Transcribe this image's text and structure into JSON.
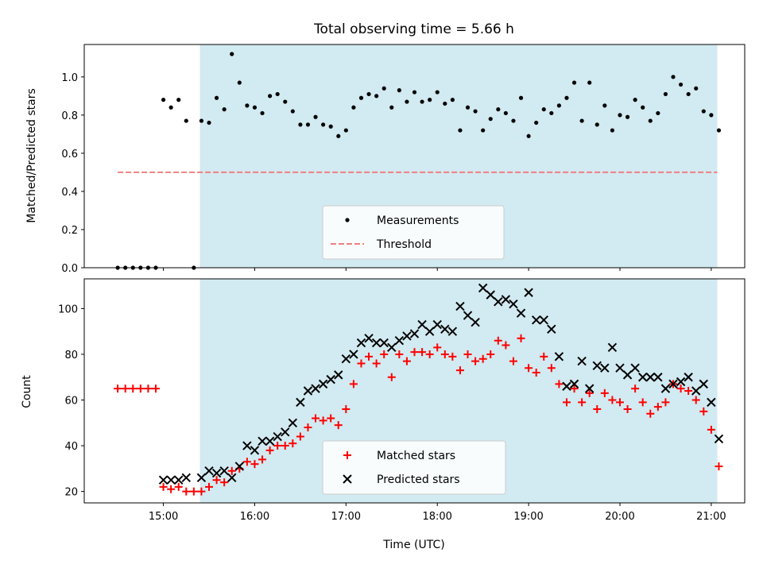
{
  "title": "Total observing time = 5.66 h",
  "xlabel": "Time (UTC)",
  "x_ticks": [
    "15:00",
    "16:00",
    "17:00",
    "18:00",
    "19:00",
    "20:00",
    "21:00"
  ],
  "colors": {
    "shade": "#add8e6",
    "threshold": "#f08080",
    "matched": "#ff0000",
    "predicted": "#000000",
    "measurement": "#000000"
  },
  "chart_data": [
    {
      "type": "scatter",
      "ylabel": "Matched/Predicted stars",
      "xlim": [
        "14:08",
        "21:22"
      ],
      "ylim": [
        0,
        1.17
      ],
      "y_ticks": [
        0.0,
        0.2,
        0.4,
        0.6,
        0.8,
        1.0
      ],
      "shaded_interval": [
        "15:24",
        "21:04"
      ],
      "threshold": {
        "name": "Threshold",
        "value": 0.5,
        "x_range": [
          "14:30",
          "21:04"
        ]
      },
      "legend_position": "lower-center",
      "series": [
        {
          "name": "Measurements",
          "points": [
            [
              "14:30",
              0.0
            ],
            [
              "14:35",
              0.0
            ],
            [
              "14:40",
              0.0
            ],
            [
              "14:45",
              0.0
            ],
            [
              "14:50",
              0.0
            ],
            [
              "14:55",
              0.0
            ],
            [
              "15:00",
              0.88
            ],
            [
              "15:05",
              0.84
            ],
            [
              "15:10",
              0.88
            ],
            [
              "15:15",
              0.77
            ],
            [
              "15:20",
              0.0
            ],
            [
              "15:25",
              0.77
            ],
            [
              "15:30",
              0.76
            ],
            [
              "15:35",
              0.89
            ],
            [
              "15:40",
              0.83
            ],
            [
              "15:45",
              1.12
            ],
            [
              "15:50",
              0.97
            ],
            [
              "15:55",
              0.85
            ],
            [
              "16:00",
              0.84
            ],
            [
              "16:05",
              0.81
            ],
            [
              "16:10",
              0.9
            ],
            [
              "16:15",
              0.91
            ],
            [
              "16:20",
              0.87
            ],
            [
              "16:25",
              0.82
            ],
            [
              "16:30",
              0.75
            ],
            [
              "16:35",
              0.75
            ],
            [
              "16:40",
              0.79
            ],
            [
              "16:45",
              0.75
            ],
            [
              "16:50",
              0.74
            ],
            [
              "16:55",
              0.69
            ],
            [
              "17:00",
              0.72
            ],
            [
              "17:05",
              0.84
            ],
            [
              "17:10",
              0.89
            ],
            [
              "17:15",
              0.91
            ],
            [
              "17:20",
              0.9
            ],
            [
              "17:25",
              0.94
            ],
            [
              "17:30",
              0.84
            ],
            [
              "17:35",
              0.93
            ],
            [
              "17:40",
              0.87
            ],
            [
              "17:45",
              0.92
            ],
            [
              "17:50",
              0.87
            ],
            [
              "17:55",
              0.88
            ],
            [
              "18:00",
              0.92
            ],
            [
              "18:05",
              0.86
            ],
            [
              "18:10",
              0.88
            ],
            [
              "18:15",
              0.72
            ],
            [
              "18:20",
              0.84
            ],
            [
              "18:25",
              0.82
            ],
            [
              "18:30",
              0.72
            ],
            [
              "18:35",
              0.78
            ],
            [
              "18:40",
              0.83
            ],
            [
              "18:45",
              0.81
            ],
            [
              "18:50",
              0.77
            ],
            [
              "18:55",
              0.89
            ],
            [
              "19:00",
              0.69
            ],
            [
              "19:05",
              0.76
            ],
            [
              "19:10",
              0.83
            ],
            [
              "19:15",
              0.81
            ],
            [
              "19:20",
              0.85
            ],
            [
              "19:25",
              0.89
            ],
            [
              "19:30",
              0.97
            ],
            [
              "19:35",
              0.77
            ],
            [
              "19:40",
              0.97
            ],
            [
              "19:45",
              0.75
            ],
            [
              "19:50",
              0.85
            ],
            [
              "19:55",
              0.72
            ],
            [
              "20:00",
              0.8
            ],
            [
              "20:05",
              0.79
            ],
            [
              "20:10",
              0.88
            ],
            [
              "20:15",
              0.84
            ],
            [
              "20:20",
              0.77
            ],
            [
              "20:25",
              0.81
            ],
            [
              "20:30",
              0.91
            ],
            [
              "20:35",
              1.0
            ],
            [
              "20:40",
              0.96
            ],
            [
              "20:45",
              0.91
            ],
            [
              "20:50",
              0.94
            ],
            [
              "20:55",
              0.82
            ],
            [
              "21:00",
              0.8
            ],
            [
              "21:05",
              0.72
            ]
          ]
        }
      ]
    },
    {
      "type": "scatter",
      "ylabel": "Count",
      "xlim": [
        "14:08",
        "21:22"
      ],
      "ylim": [
        15,
        113
      ],
      "y_ticks": [
        20,
        40,
        60,
        80,
        100
      ],
      "shaded_interval": [
        "15:24",
        "21:04"
      ],
      "legend_position": "lower-center",
      "series": [
        {
          "name": "Matched stars",
          "marker": "plus",
          "points": [
            [
              "14:30",
              65
            ],
            [
              "14:35",
              65
            ],
            [
              "14:40",
              65
            ],
            [
              "14:45",
              65
            ],
            [
              "14:50",
              65
            ],
            [
              "14:55",
              65
            ],
            [
              "15:00",
              22
            ],
            [
              "15:05",
              21
            ],
            [
              "15:10",
              22
            ],
            [
              "15:15",
              20
            ],
            [
              "15:20",
              20
            ],
            [
              "15:25",
              20
            ],
            [
              "15:30",
              22
            ],
            [
              "15:35",
              25
            ],
            [
              "15:40",
              24
            ],
            [
              "15:45",
              29
            ],
            [
              "15:50",
              30
            ],
            [
              "15:55",
              33
            ],
            [
              "16:00",
              32
            ],
            [
              "16:05",
              34
            ],
            [
              "16:10",
              38
            ],
            [
              "16:15",
              40
            ],
            [
              "16:20",
              40
            ],
            [
              "16:25",
              41
            ],
            [
              "16:30",
              44
            ],
            [
              "16:35",
              48
            ],
            [
              "16:40",
              52
            ],
            [
              "16:45",
              51
            ],
            [
              "16:50",
              52
            ],
            [
              "16:55",
              49
            ],
            [
              "17:00",
              56
            ],
            [
              "17:05",
              67
            ],
            [
              "17:10",
              76
            ],
            [
              "17:15",
              79
            ],
            [
              "17:20",
              76
            ],
            [
              "17:25",
              80
            ],
            [
              "17:30",
              70
            ],
            [
              "17:35",
              80
            ],
            [
              "17:40",
              77
            ],
            [
              "17:45",
              81
            ],
            [
              "17:50",
              81
            ],
            [
              "17:55",
              80
            ],
            [
              "18:00",
              83
            ],
            [
              "18:05",
              80
            ],
            [
              "18:10",
              79
            ],
            [
              "18:15",
              73
            ],
            [
              "18:20",
              80
            ],
            [
              "18:25",
              77
            ],
            [
              "18:30",
              78
            ],
            [
              "18:35",
              80
            ],
            [
              "18:40",
              86
            ],
            [
              "18:45",
              84
            ],
            [
              "18:50",
              77
            ],
            [
              "18:55",
              87
            ],
            [
              "19:00",
              74
            ],
            [
              "19:05",
              72
            ],
            [
              "19:10",
              79
            ],
            [
              "19:15",
              74
            ],
            [
              "19:20",
              67
            ],
            [
              "19:25",
              59
            ],
            [
              "19:30",
              65
            ],
            [
              "19:35",
              59
            ],
            [
              "19:40",
              63
            ],
            [
              "19:45",
              56
            ],
            [
              "19:50",
              63
            ],
            [
              "19:55",
              60
            ],
            [
              "20:00",
              59
            ],
            [
              "20:05",
              56
            ],
            [
              "20:10",
              65
            ],
            [
              "20:15",
              59
            ],
            [
              "20:20",
              54
            ],
            [
              "20:25",
              57
            ],
            [
              "20:30",
              59
            ],
            [
              "20:35",
              67
            ],
            [
              "20:40",
              65
            ],
            [
              "20:45",
              64
            ],
            [
              "20:50",
              60
            ],
            [
              "20:55",
              55
            ],
            [
              "21:00",
              47
            ],
            [
              "21:05",
              31
            ]
          ]
        },
        {
          "name": "Predicted stars",
          "marker": "x",
          "points": [
            [
              "15:00",
              25
            ],
            [
              "15:05",
              25
            ],
            [
              "15:10",
              25
            ],
            [
              "15:15",
              26
            ],
            [
              "15:25",
              26
            ],
            [
              "15:30",
              29
            ],
            [
              "15:35",
              28
            ],
            [
              "15:40",
              29
            ],
            [
              "15:45",
              26
            ],
            [
              "15:50",
              31
            ],
            [
              "15:55",
              40
            ],
            [
              "16:00",
              38
            ],
            [
              "16:05",
              42
            ],
            [
              "16:10",
              42
            ],
            [
              "16:15",
              44
            ],
            [
              "16:20",
              46
            ],
            [
              "16:25",
              50
            ],
            [
              "16:30",
              59
            ],
            [
              "16:35",
              64
            ],
            [
              "16:40",
              65
            ],
            [
              "16:45",
              67
            ],
            [
              "16:50",
              69
            ],
            [
              "16:55",
              71
            ],
            [
              "17:00",
              78
            ],
            [
              "17:05",
              80
            ],
            [
              "17:10",
              85
            ],
            [
              "17:15",
              87
            ],
            [
              "17:20",
              85
            ],
            [
              "17:25",
              85
            ],
            [
              "17:30",
              83
            ],
            [
              "17:35",
              86
            ],
            [
              "17:40",
              88
            ],
            [
              "17:45",
              89
            ],
            [
              "17:50",
              93
            ],
            [
              "17:55",
              90
            ],
            [
              "18:00",
              93
            ],
            [
              "18:05",
              91
            ],
            [
              "18:10",
              90
            ],
            [
              "18:15",
              101
            ],
            [
              "18:20",
              97
            ],
            [
              "18:25",
              94
            ],
            [
              "18:30",
              109
            ],
            [
              "18:35",
              106
            ],
            [
              "18:40",
              103
            ],
            [
              "18:45",
              104
            ],
            [
              "18:50",
              102
            ],
            [
              "18:55",
              98
            ],
            [
              "19:00",
              107
            ],
            [
              "19:05",
              95
            ],
            [
              "19:10",
              95
            ],
            [
              "19:15",
              91
            ],
            [
              "19:20",
              79
            ],
            [
              "19:25",
              66
            ],
            [
              "19:30",
              67
            ],
            [
              "19:35",
              77
            ],
            [
              "19:40",
              65
            ],
            [
              "19:45",
              75
            ],
            [
              "19:50",
              74
            ],
            [
              "19:55",
              83
            ],
            [
              "20:00",
              74
            ],
            [
              "20:05",
              71
            ],
            [
              "20:10",
              74
            ],
            [
              "20:15",
              70
            ],
            [
              "20:20",
              70
            ],
            [
              "20:25",
              70
            ],
            [
              "20:30",
              65
            ],
            [
              "20:35",
              67
            ],
            [
              "20:40",
              68
            ],
            [
              "20:45",
              70
            ],
            [
              "20:50",
              64
            ],
            [
              "20:55",
              67
            ],
            [
              "21:00",
              59
            ],
            [
              "21:05",
              43
            ]
          ]
        }
      ]
    }
  ]
}
